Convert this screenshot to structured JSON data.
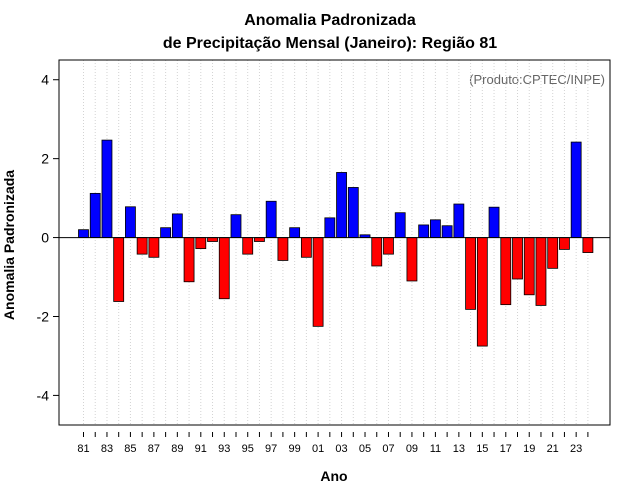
{
  "chart_data": {
    "type": "bar",
    "title": [
      "Anomalia Padronizada",
      "de Precipitação Mensal (Janeiro): Região 81"
    ],
    "xlabel": "Ano",
    "ylabel": "Anomalia Padronizada",
    "credit": "(Produto:CPTEC/INPE)",
    "ylim": [
      -4.75,
      4.5
    ],
    "yticks": [
      "-4",
      "-2",
      "0",
      "2",
      "4"
    ],
    "ytick_values": [
      -4,
      -2,
      0,
      2,
      4
    ],
    "grid": true,
    "categories": [
      "81",
      "82",
      "83",
      "84",
      "85",
      "86",
      "87",
      "88",
      "89",
      "90",
      "91",
      "92",
      "93",
      "94",
      "95",
      "96",
      "97",
      "98",
      "99",
      "00",
      "01",
      "02",
      "03",
      "04",
      "05",
      "06",
      "07",
      "08",
      "09",
      "10",
      "11",
      "12",
      "13",
      "14",
      "15",
      "16",
      "17",
      "18",
      "19",
      "20",
      "21",
      "22",
      "23",
      "24"
    ],
    "xtick_labels": [
      "81",
      "83",
      "85",
      "87",
      "89",
      "91",
      "93",
      "95",
      "97",
      "99",
      "01",
      "03",
      "05",
      "07",
      "09",
      "11",
      "13",
      "15",
      "17",
      "19",
      "21",
      "23"
    ],
    "values": [
      0.2,
      1.12,
      2.47,
      -1.62,
      0.78,
      -0.42,
      -0.5,
      0.25,
      0.6,
      -1.12,
      -0.28,
      -0.1,
      -1.55,
      0.58,
      -0.42,
      -0.1,
      0.92,
      -0.58,
      0.25,
      -0.5,
      -2.25,
      0.5,
      1.65,
      1.27,
      0.07,
      -0.72,
      -0.42,
      0.63,
      -1.1,
      0.32,
      0.45,
      0.3,
      0.85,
      -1.82,
      -2.75,
      0.77,
      -1.7,
      -1.05,
      -1.45,
      -1.72,
      -0.78,
      -0.3,
      2.42,
      -0.38
    ],
    "colors": {
      "positive": "#0000ff",
      "negative": "#ff0000",
      "grid": "#d3d3d3",
      "frame": "#000000"
    }
  }
}
